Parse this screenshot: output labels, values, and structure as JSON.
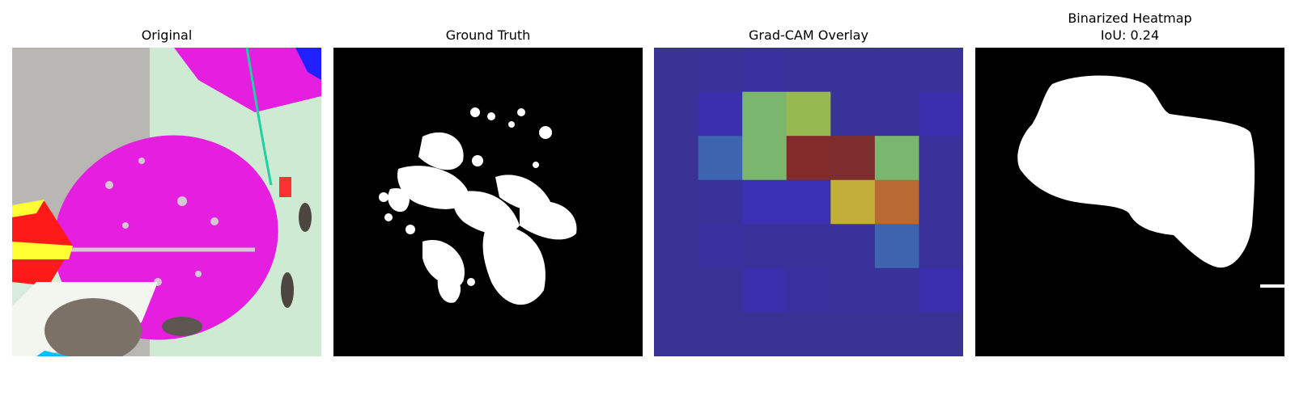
{
  "panels": [
    {
      "title": "Original"
    },
    {
      "title": "Ground Truth"
    },
    {
      "title": "Grad-CAM Overlay"
    },
    {
      "title": "Binarized Heatmap",
      "subtitle": "IoU: 0.24"
    }
  ],
  "colors": {
    "leaf_magenta": "#e51ee0",
    "background_pale_green": "#cfead2",
    "mask_white": "#ffffff",
    "mask_black": "#000000",
    "cam_low": "#3a3476"
  },
  "gradcam_grid": [
    [
      0.1,
      0.12,
      0.14,
      0.12,
      0.12,
      0.12,
      0.12
    ],
    [
      0.1,
      0.18,
      0.55,
      0.62,
      0.12,
      0.12,
      0.18
    ],
    [
      0.1,
      0.35,
      0.55,
      0.95,
      0.92,
      0.55,
      0.12
    ],
    [
      0.1,
      0.12,
      0.2,
      0.2,
      0.68,
      0.8,
      0.12
    ],
    [
      0.1,
      0.14,
      0.12,
      0.12,
      0.12,
      0.35,
      0.12
    ],
    [
      0.1,
      0.1,
      0.18,
      0.14,
      0.12,
      0.12,
      0.18
    ],
    [
      0.1,
      0.1,
      0.1,
      0.1,
      0.1,
      0.1,
      0.1
    ]
  ]
}
